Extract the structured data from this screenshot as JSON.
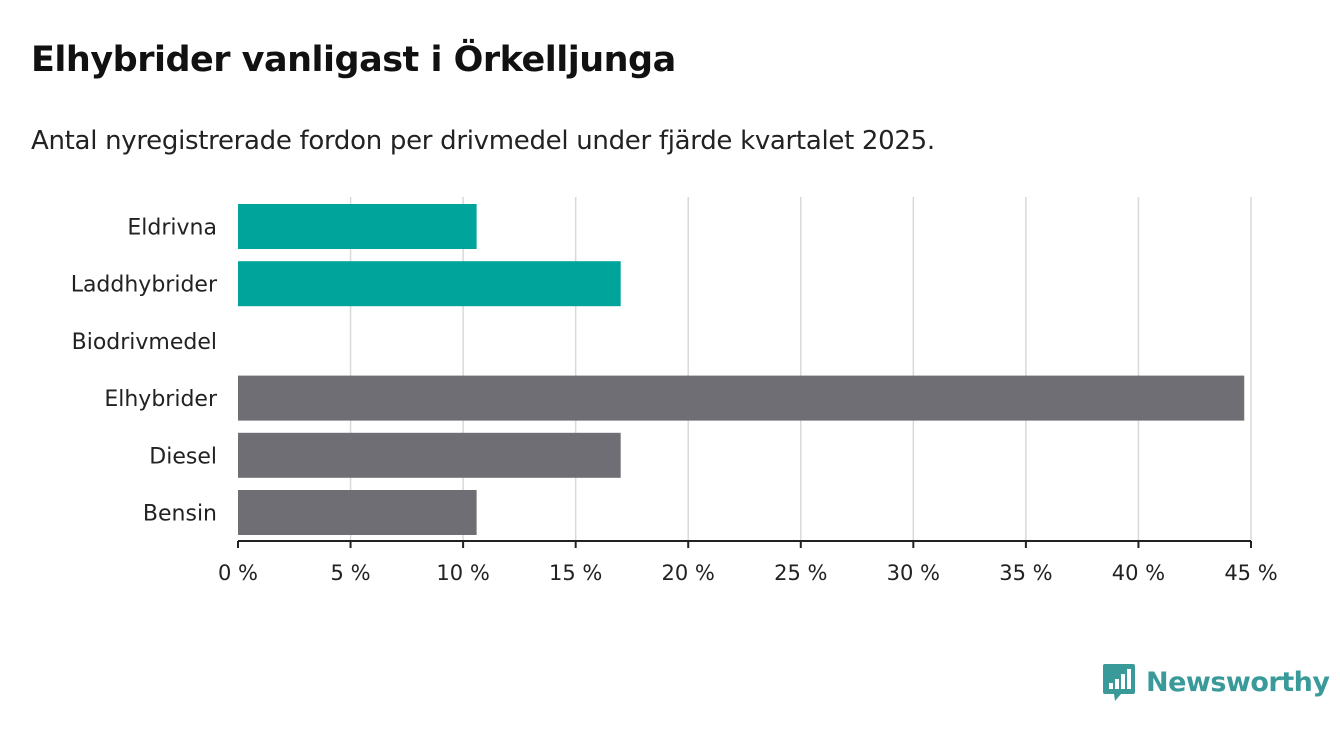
{
  "title": "Elhybrider vanligast i Örkelljunga",
  "subtitle": "Antal nyregistrerade fordon per drivmedel under fjärde kvartalet 2025.",
  "brand": {
    "name": "Newsworthy",
    "icon": "bar-chart-speech-bubble-icon",
    "color": "#3a9a9a"
  },
  "chart_data": {
    "type": "bar",
    "orientation": "horizontal",
    "categories": [
      "Eldrivna",
      "Laddhybrider",
      "Biodrivmedel",
      "Elhybrider",
      "Diesel",
      "Bensin"
    ],
    "values": [
      10.6,
      17.0,
      0,
      44.7,
      17.0,
      10.6
    ],
    "colors": [
      "#00a49b",
      "#00a49b",
      "#00a49b",
      "#6f6e74",
      "#6f6e74",
      "#6f6e74"
    ],
    "xlim": [
      0,
      45
    ],
    "xticks": [
      0,
      5,
      10,
      15,
      20,
      25,
      30,
      35,
      40,
      45
    ],
    "tick_suffix": " %",
    "grid": true,
    "xlabel": "",
    "ylabel": ""
  }
}
